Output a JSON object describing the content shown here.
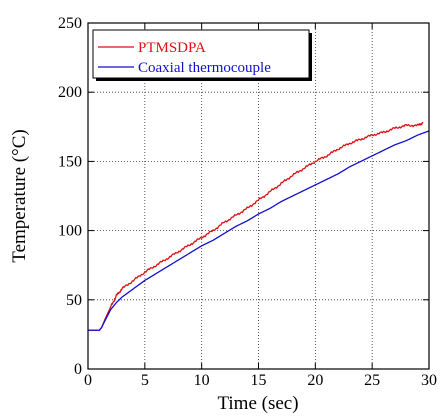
{
  "chart_data": {
    "type": "line",
    "title": "",
    "xlabel": "Time (sec)",
    "ylabel": "Temperature (°C)",
    "xlim": [
      0,
      30
    ],
    "ylim": [
      0,
      250
    ],
    "x_ticks": [
      0,
      5,
      10,
      15,
      20,
      25,
      30
    ],
    "y_ticks": [
      0,
      50,
      100,
      150,
      200,
      250
    ],
    "grid": true,
    "grid_style": "dotted",
    "legend_position": "top-left",
    "series": [
      {
        "name": "PTMSDPA",
        "color": "#dd1111",
        "noise": 0.9,
        "x": [
          0,
          1,
          1.2,
          1.5,
          2,
          2.5,
          3,
          4,
          5,
          6,
          7,
          8,
          9,
          10,
          11,
          12,
          13,
          14,
          15,
          16,
          17,
          18,
          19,
          20,
          21,
          22,
          23,
          24,
          25,
          26,
          27,
          28,
          29,
          29.5
        ],
        "y": [
          28,
          28,
          30,
          36,
          45,
          53,
          58,
          64,
          70,
          75,
          80,
          85,
          90,
          95,
          100,
          106,
          111,
          116,
          122,
          128,
          134,
          140,
          145,
          150,
          154,
          159,
          163,
          166,
          169,
          171,
          174,
          176,
          176,
          178
        ]
      },
      {
        "name": "Coaxial thermocouple",
        "color": "#1111cc",
        "noise": 0,
        "x": [
          0,
          1,
          1.2,
          1.5,
          2,
          2.5,
          3,
          4,
          5,
          6,
          7,
          8,
          9,
          10,
          11,
          12,
          13,
          14,
          15,
          16,
          17,
          18,
          19,
          20,
          21,
          22,
          23,
          24,
          25,
          26,
          27,
          28,
          29,
          30
        ],
        "y": [
          28,
          28,
          30,
          35,
          43,
          48,
          52,
          58,
          64,
          69,
          74,
          79,
          84,
          89,
          93,
          98,
          103,
          107,
          112,
          116,
          121,
          125,
          129,
          133,
          137,
          141,
          146,
          150,
          154,
          158,
          162,
          165,
          169,
          172
        ]
      }
    ]
  }
}
